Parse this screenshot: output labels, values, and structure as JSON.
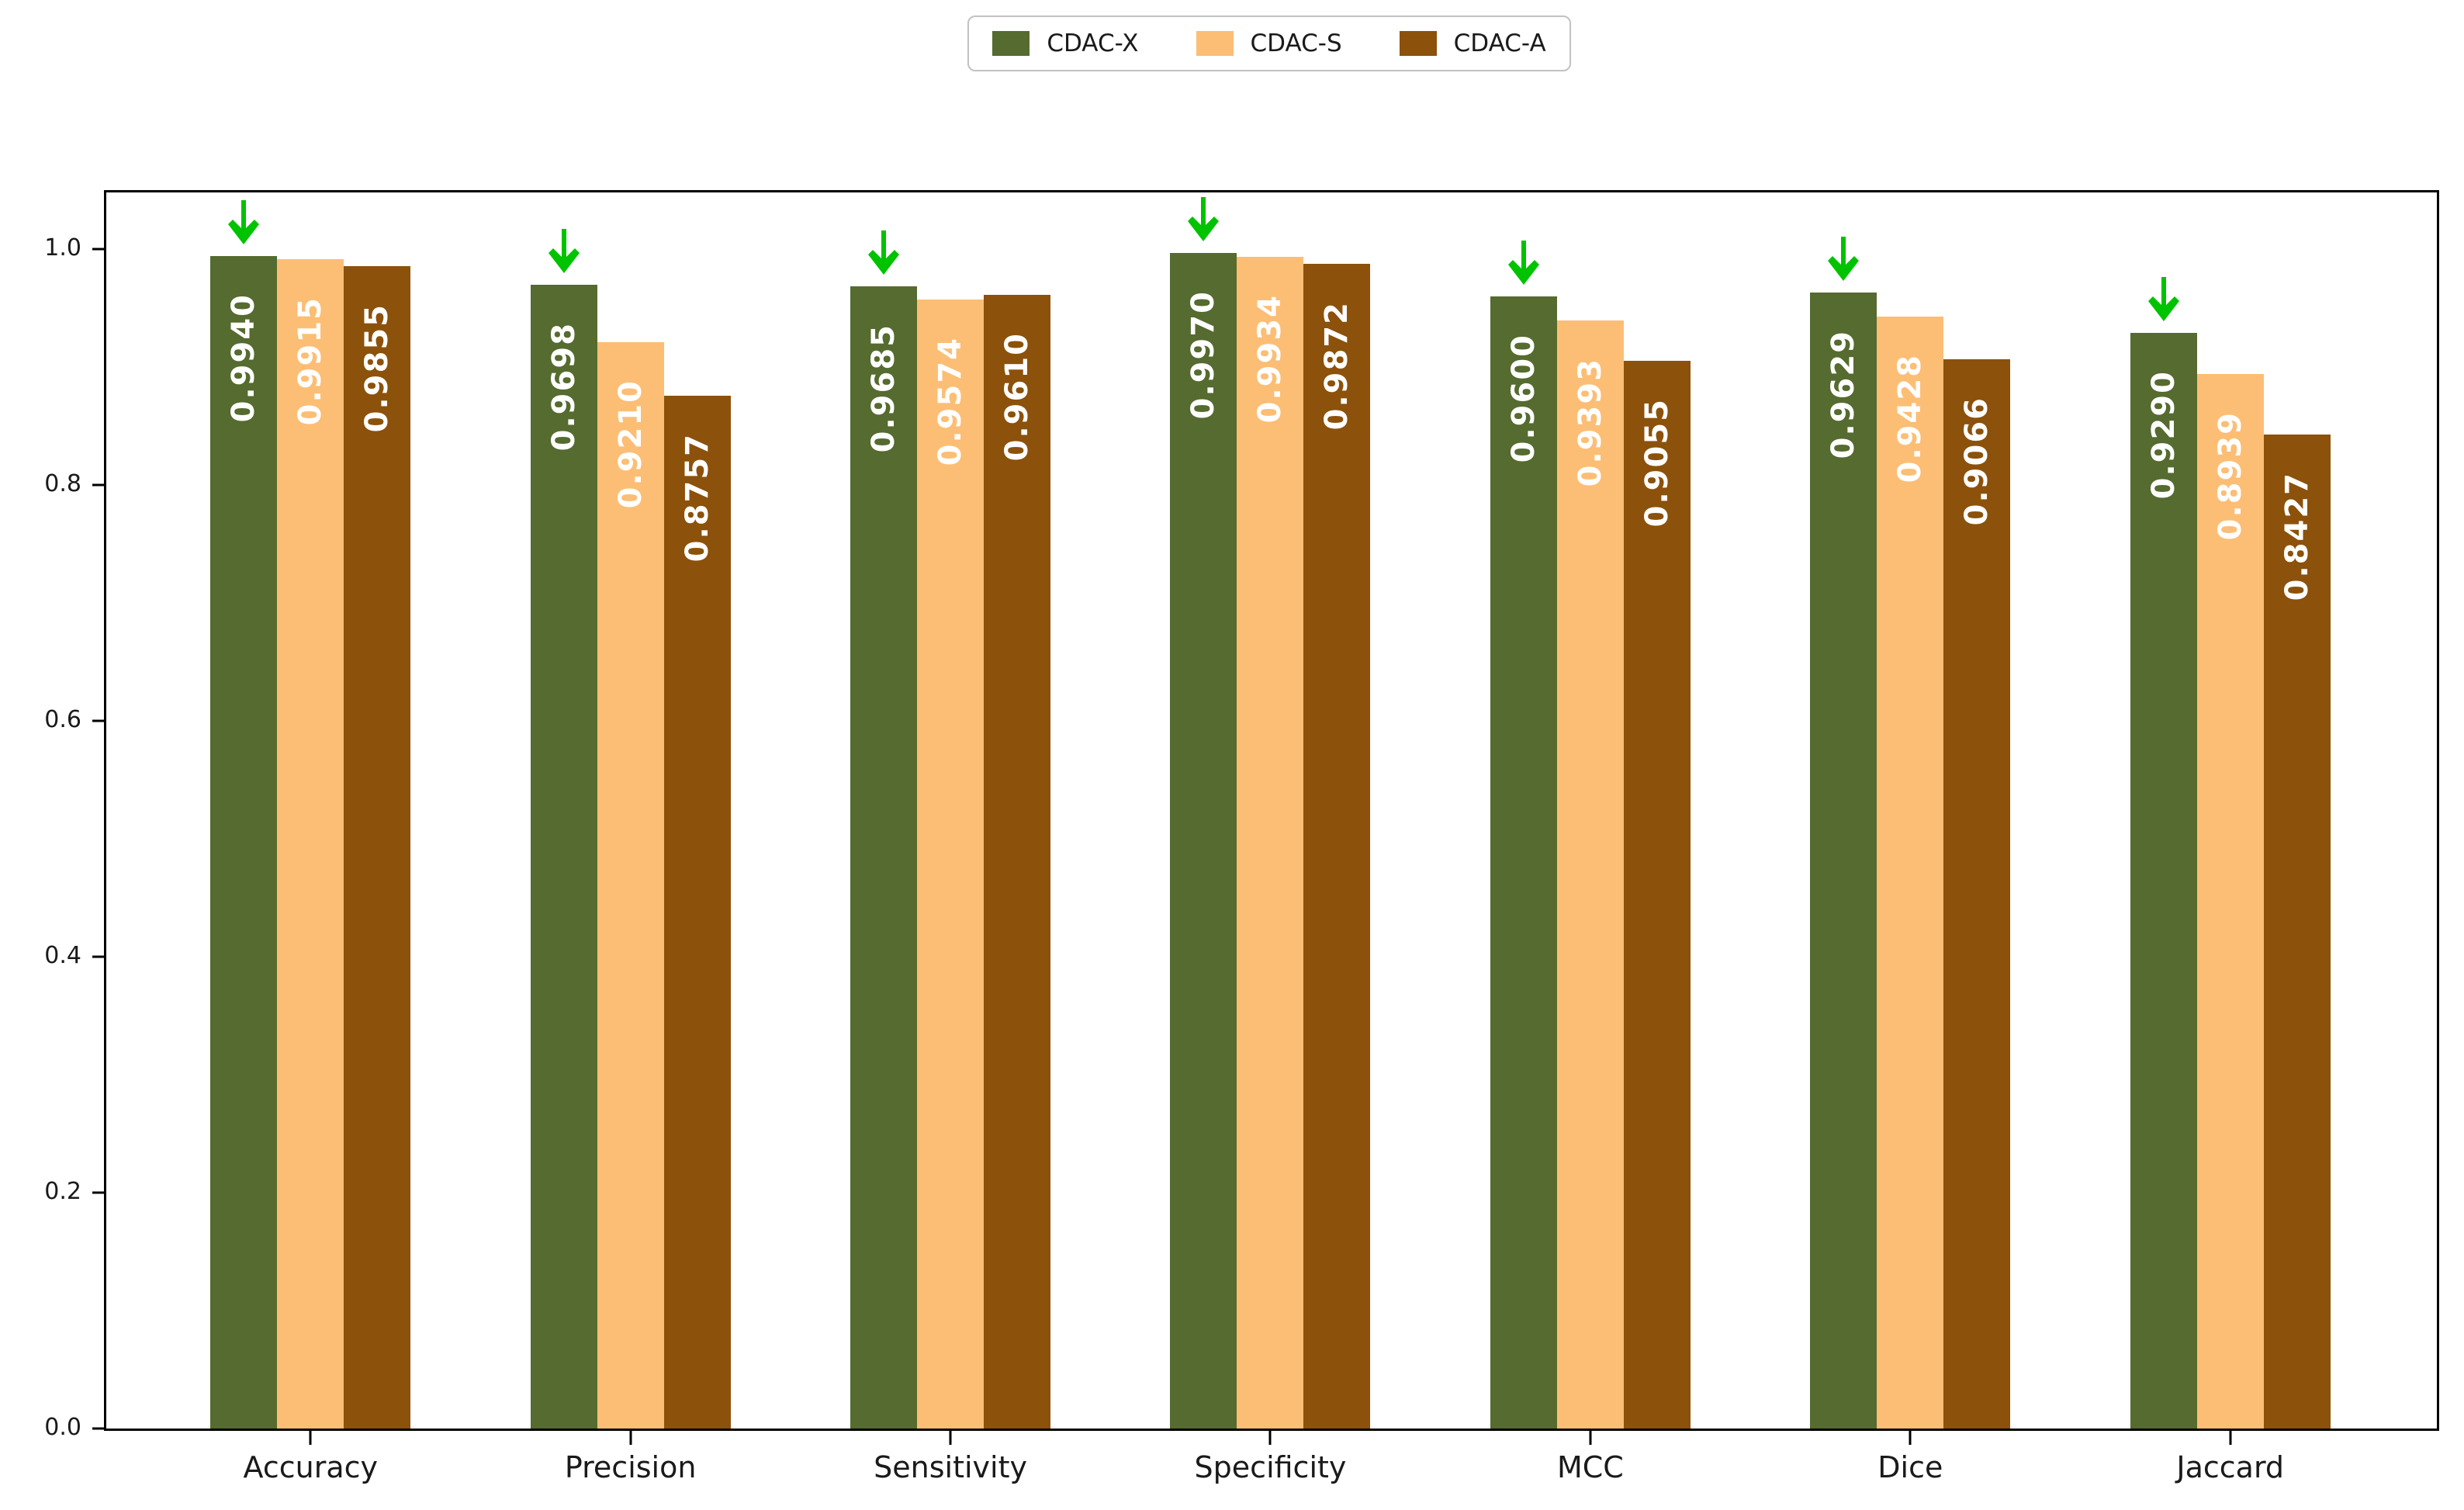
{
  "chart_data": {
    "type": "bar",
    "categories": [
      "Accuracy",
      "Precision",
      "Sensitivity",
      "Specificity",
      "MCC",
      "Dice",
      "Jaccard"
    ],
    "series": [
      {
        "name": "CDAC-X",
        "color": "#556B2F",
        "values": [
          0.994,
          0.9698,
          0.9685,
          0.997,
          0.96,
          0.9629,
          0.929
        ],
        "value_labels": [
          "0.9940",
          "0.9698",
          "0.9685",
          "0.9970",
          "0.9600",
          "0.9629",
          "0.9290"
        ]
      },
      {
        "name": "CDAC-S",
        "color": "#FCBE75",
        "values": [
          0.9915,
          0.921,
          0.9574,
          0.9934,
          0.9393,
          0.9428,
          0.8939
        ],
        "value_labels": [
          "0.9915",
          "0.9210",
          "0.9574",
          "0.9934",
          "0.9393",
          "0.9428",
          "0.8939"
        ]
      },
      {
        "name": "CDAC-A",
        "color": "#8C510A",
        "values": [
          0.9855,
          0.8757,
          0.961,
          0.9872,
          0.9055,
          0.9066,
          0.8427
        ],
        "value_labels": [
          "0.9855",
          "0.8757",
          "0.9610",
          "0.9872",
          "0.9055",
          "0.9066",
          "0.8427"
        ]
      }
    ],
    "ytick_labels": [
      "0.0",
      "0.2",
      "0.4",
      "0.6",
      "0.8",
      "1.0"
    ],
    "yticks": [
      0.0,
      0.2,
      0.4,
      0.6,
      0.8,
      1.0
    ],
    "ylim": [
      0,
      1.048
    ],
    "grid": false,
    "legend_position": "top-center",
    "value_label_color": "#FFFFFF",
    "annotation": {
      "type": "down-arrow",
      "on_series": "CDAC-X",
      "color": "#00C300",
      "applies_to_all_categories": true
    }
  },
  "legend": {
    "items": [
      {
        "label": "CDAC-X",
        "color": "#556B2F"
      },
      {
        "label": "CDAC-S",
        "color": "#FCBE75"
      },
      {
        "label": "CDAC-A",
        "color": "#8C510A"
      }
    ]
  },
  "colors": {
    "axis_spine": "#000000",
    "tick_text": "#1A1A1A",
    "background": "#FFFFFF",
    "arrow_green": "#00C300"
  }
}
